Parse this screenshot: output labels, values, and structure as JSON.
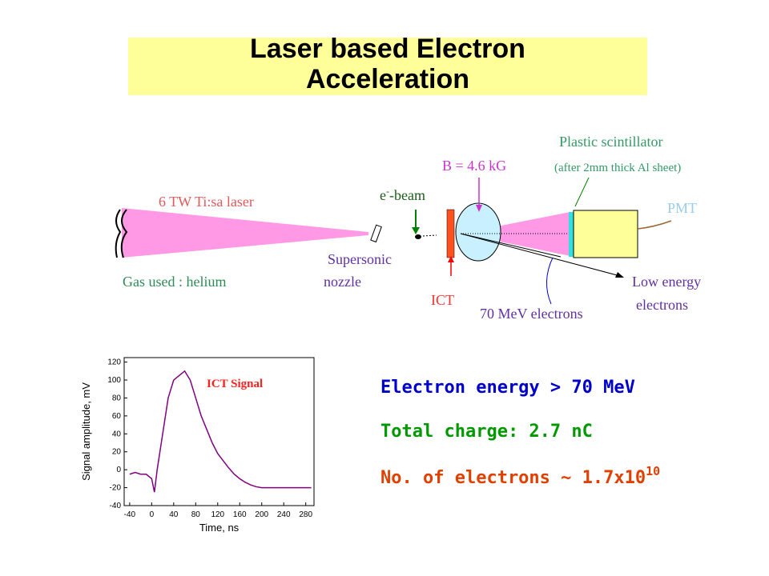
{
  "title": "Laser based Electron Acceleration",
  "diagram": {
    "laser": "6 TW Ti:sa laser",
    "gas": "Gas used : helium",
    "nozzle": [
      "Supersonic",
      "nozzle"
    ],
    "beam": {
      "e": "e",
      "sup": "-",
      "rest": "-beam"
    },
    "field": "B = 4.6 kG",
    "ict": "ICT",
    "fast_electrons": "70 MeV electrons",
    "slow_electrons": [
      "Low energy",
      "electrons"
    ],
    "scintillator": "Plastic scintillator",
    "scintillator_note": "(after 2mm thick Al sheet)",
    "pmt": "PMT"
  },
  "results": {
    "energy": "Electron energy > 70 MeV",
    "charge": "Total charge: 2.7 nC",
    "electrons": {
      "text": "No. of electrons ~ 1.7x10",
      "sup": "10"
    }
  },
  "chart_data": {
    "type": "line",
    "title": "ICT Signal",
    "x_label": "Time, ns",
    "y_label": "Signal amplitude, mV",
    "x": [
      -40,
      -30,
      -20,
      -10,
      0,
      5,
      10,
      20,
      30,
      40,
      50,
      60,
      70,
      80,
      90,
      100,
      110,
      120,
      130,
      140,
      150,
      160,
      170,
      180,
      190,
      200,
      210,
      220,
      230,
      240,
      250,
      260,
      270,
      280,
      290
    ],
    "series": [
      {
        "color": "#800080",
        "values": [
          -5,
          -3,
          -5,
          -5,
          -10,
          -25,
          0,
          40,
          80,
          100,
          105,
          110,
          100,
          80,
          60,
          45,
          30,
          18,
          10,
          2,
          -5,
          -10,
          -14,
          -17,
          -19,
          -20,
          -20,
          -20,
          -20,
          -20,
          -20,
          -20,
          -20,
          -20,
          -20
        ]
      }
    ],
    "xlim": [
      -50,
      295
    ],
    "ylim": [
      -40,
      125
    ],
    "xticks": [
      -40,
      0,
      40,
      80,
      120,
      160,
      200,
      240,
      280
    ],
    "yticks": [
      -40,
      -20,
      0,
      20,
      40,
      60,
      80,
      100,
      120
    ]
  }
}
